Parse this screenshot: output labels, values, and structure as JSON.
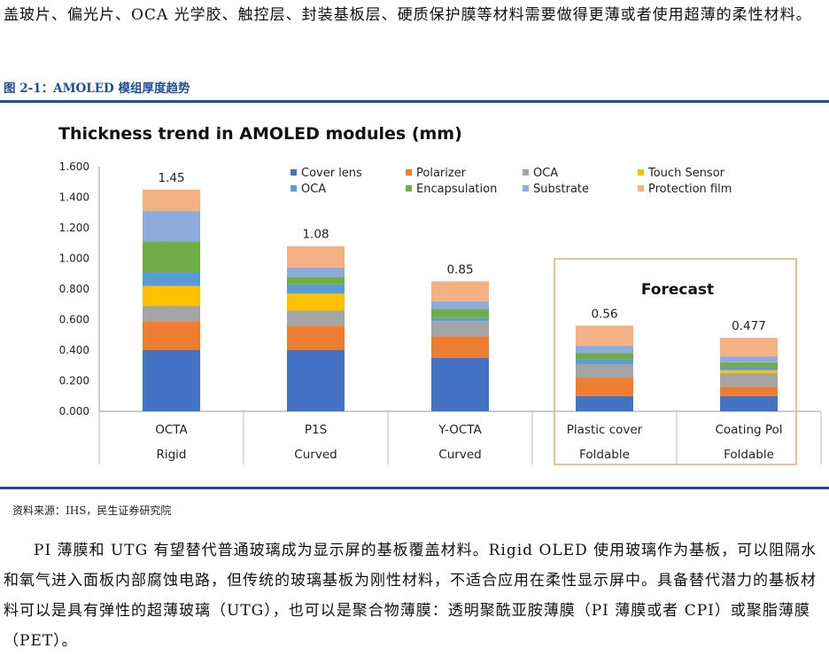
{
  "intro_text": "盖玻片、偏光片、OCA 光学胶、触控层、封装基板层、硬质保护膜等材料需要做得更薄或者使用超薄的柔性材料。",
  "figure_caption": "图 2-1：AMOLED 模组厚度趋势",
  "source_note": "资料来源：IHS，民生证券研究院",
  "body_text": "PI 薄膜和 UTG 有望替代普通玻璃成为显示屏的基板覆盖材料。Rigid OLED 使用玻璃作为基板，可以阻隔水和氧气进入面板内部腐蚀电路，但传统的玻璃基板为刚性材料，不适合应用在柔性显示屏中。具备替代潜力的基板材料可以是具有弹性的超薄玻璃（UTG），也可以是聚合物薄膜：透明聚酰亚胺薄膜（PI 薄膜或者 CPI）或聚脂薄膜（PET）。",
  "chart_data": {
    "type": "bar",
    "stacked": true,
    "title": "Thickness trend in AMOLED modules (mm)",
    "categories": [
      "OCTA",
      "P1S",
      "Y-OCTA",
      "Plastic cover",
      "Coating Pol"
    ],
    "category_groups": [
      "Rigid",
      "Curved",
      "Curved",
      "Foldable",
      "Foldable"
    ],
    "totals": [
      "1.45",
      "1.08",
      "0.85",
      "0.56",
      "0.477"
    ],
    "annotation": "Forecast",
    "ylim": [
      0,
      1.6
    ],
    "y_ticks": [
      "0.000",
      "0.200",
      "0.400",
      "0.600",
      "0.800",
      "1.000",
      "1.200",
      "1.400",
      "1.600"
    ],
    "legend_placement": "top-right",
    "series": [
      {
        "name": "Cover lens",
        "color": "#4472c4",
        "values": [
          0.4,
          0.4,
          0.35,
          0.1,
          0.1
        ]
      },
      {
        "name": "Polarizer",
        "color": "#ed7d31",
        "values": [
          0.19,
          0.16,
          0.14,
          0.12,
          0.06
        ]
      },
      {
        "name": "OCA",
        "color": "#a5a5a5",
        "values": [
          0.1,
          0.1,
          0.1,
          0.09,
          0.09
        ]
      },
      {
        "name": "Touch Sensor",
        "color": "#ffc000",
        "values": [
          0.13,
          0.11,
          0.0,
          0.0,
          0.02
        ]
      },
      {
        "name": "OCA",
        "color": "#5b9bd5",
        "values": [
          0.09,
          0.06,
          0.02,
          0.03,
          0.02
        ]
      },
      {
        "name": "Encapsulation",
        "color": "#70ad47",
        "values": [
          0.2,
          0.05,
          0.06,
          0.04,
          0.03
        ]
      },
      {
        "name": "Substrate",
        "color": "#8faadc",
        "values": [
          0.2,
          0.06,
          0.05,
          0.05,
          0.04
        ]
      },
      {
        "name": "Protection film",
        "color": "#f4b183",
        "values": [
          0.14,
          0.14,
          0.13,
          0.13,
          0.12
        ]
      }
    ]
  }
}
